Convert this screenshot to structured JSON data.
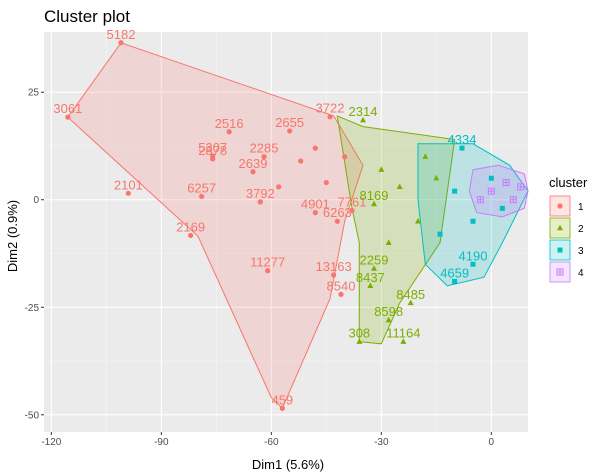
{
  "chart_data": {
    "type": "scatter",
    "title": "Cluster plot",
    "xlabel": "Dim1 (5.6%)",
    "ylabel": "Dim2 (0.9%)",
    "xlim": [
      -122,
      10
    ],
    "ylim": [
      -54,
      39
    ],
    "x_ticks": [
      -120,
      -90,
      -60,
      -30,
      0
    ],
    "x_tick_labels": [
      "-120",
      "-90",
      "-60",
      "-30",
      "0"
    ],
    "y_ticks": [
      -50,
      -25,
      0,
      25
    ],
    "y_tick_labels": [
      "-50",
      "-25",
      "0",
      "25"
    ],
    "grid": true,
    "legend": {
      "title": "cluster",
      "placement": "right",
      "entries": [
        {
          "label": "1",
          "color": "#F8766D",
          "shape": "circle"
        },
        {
          "label": "2",
          "color": "#7CAE00",
          "shape": "triangle"
        },
        {
          "label": "3",
          "color": "#00BFC4",
          "shape": "square"
        },
        {
          "label": "4",
          "color": "#C77CFF",
          "shape": "plus-square"
        }
      ]
    },
    "clusters": [
      {
        "id": "1",
        "color": "#F8766D",
        "hull": [
          [
            -115.5,
            19.2
          ],
          [
            -101,
            36.5
          ],
          [
            -43,
            19.5
          ],
          [
            -35,
            8
          ],
          [
            -40,
            -5
          ],
          [
            -44,
            -23
          ],
          [
            -57,
            -48.5
          ],
          [
            -60,
            -46
          ],
          [
            -80,
            -8.5
          ],
          [
            -115.5,
            19.2
          ]
        ],
        "points": [
          {
            "x": -101,
            "y": 36.5,
            "label": "5182"
          },
          {
            "x": -115.5,
            "y": 19.2,
            "label": "3061"
          },
          {
            "x": -71.5,
            "y": 15.8,
            "label": "2516"
          },
          {
            "x": -76,
            "y": 10.2,
            "label": "5307"
          },
          {
            "x": -76,
            "y": 9.5,
            "label": "2878"
          },
          {
            "x": -99,
            "y": 1.5,
            "label": "2101"
          },
          {
            "x": -79,
            "y": 0.8,
            "label": "6257"
          },
          {
            "x": -82,
            "y": -8.3,
            "label": "2169"
          },
          {
            "x": -61,
            "y": -16.5,
            "label": "11277"
          },
          {
            "x": -57,
            "y": -48.5,
            "label": "459"
          },
          {
            "x": -55,
            "y": 16,
            "label": "2655"
          },
          {
            "x": -44,
            "y": 19.3,
            "label": "3722"
          },
          {
            "x": -62,
            "y": 10,
            "label": "2285"
          },
          {
            "x": -65,
            "y": 6.5,
            "label": "2639"
          },
          {
            "x": -63,
            "y": -0.5,
            "label": "3792"
          },
          {
            "x": -48,
            "y": -3,
            "label": "4901"
          },
          {
            "x": -43,
            "y": -17.5,
            "label": "13163"
          },
          {
            "x": -41,
            "y": -22,
            "label": "8540"
          },
          {
            "x": -42,
            "y": -5,
            "label": "6263"
          },
          {
            "x": -38,
            "y": -2.5,
            "label": "7761"
          },
          {
            "x": -52,
            "y": 9,
            "label": ""
          },
          {
            "x": -48,
            "y": 12,
            "label": ""
          },
          {
            "x": -58,
            "y": 3,
            "label": ""
          },
          {
            "x": -45,
            "y": 4,
            "label": ""
          },
          {
            "x": -40,
            "y": 10,
            "label": ""
          }
        ]
      },
      {
        "id": "2",
        "color": "#7CAE00",
        "hull": [
          [
            -42,
            19.5
          ],
          [
            -35,
            17
          ],
          [
            -10,
            14
          ],
          [
            -14,
            -10
          ],
          [
            -25,
            -24
          ],
          [
            -30,
            -33.5
          ],
          [
            -36,
            -33
          ],
          [
            -36,
            -10
          ],
          [
            -38,
            -2
          ],
          [
            -42,
            19.5
          ]
        ],
        "points": [
          {
            "x": -36,
            "y": -33,
            "label": "308"
          },
          {
            "x": -24,
            "y": -33,
            "label": "11164"
          },
          {
            "x": -28,
            "y": -28,
            "label": "8598"
          },
          {
            "x": -22,
            "y": -24,
            "label": "8485"
          },
          {
            "x": -33,
            "y": -20,
            "label": "8437"
          },
          {
            "x": -32,
            "y": -16,
            "label": "2259"
          },
          {
            "x": -35,
            "y": 18.5,
            "label": "2314"
          },
          {
            "x": -32,
            "y": -1,
            "label": "8169"
          },
          {
            "x": -30,
            "y": 7,
            "label": ""
          },
          {
            "x": -25,
            "y": 3,
            "label": ""
          },
          {
            "x": -20,
            "y": -5,
            "label": ""
          },
          {
            "x": -18,
            "y": 10,
            "label": ""
          },
          {
            "x": -28,
            "y": -10,
            "label": ""
          },
          {
            "x": -15,
            "y": 5,
            "label": ""
          }
        ]
      },
      {
        "id": "3",
        "color": "#00BFC4",
        "hull": [
          [
            -20,
            13
          ],
          [
            -5,
            13
          ],
          [
            5,
            8
          ],
          [
            10,
            2
          ],
          [
            3,
            -10
          ],
          [
            -2,
            -18
          ],
          [
            -12,
            -20
          ],
          [
            -18,
            -15
          ],
          [
            -20,
            0
          ],
          [
            -20,
            13
          ]
        ],
        "points": [
          {
            "x": -5,
            "y": -15,
            "label": "4190"
          },
          {
            "x": -10,
            "y": -19,
            "label": "4659"
          },
          {
            "x": -8,
            "y": 12,
            "label": "4334"
          },
          {
            "x": -10,
            "y": 2,
            "label": ""
          },
          {
            "x": -5,
            "y": -5,
            "label": ""
          },
          {
            "x": 0,
            "y": 5,
            "label": ""
          },
          {
            "x": -14,
            "y": -8,
            "label": ""
          },
          {
            "x": 3,
            "y": -2,
            "label": ""
          }
        ]
      },
      {
        "id": "4",
        "color": "#C77CFF",
        "hull": [
          [
            -5,
            7
          ],
          [
            2,
            8
          ],
          [
            9,
            6
          ],
          [
            10,
            2
          ],
          [
            9,
            -2
          ],
          [
            3,
            -4
          ],
          [
            -4,
            -3
          ],
          [
            -6,
            2
          ],
          [
            -5,
            7
          ]
        ],
        "points": [
          {
            "x": 0,
            "y": 2,
            "label": ""
          },
          {
            "x": 4,
            "y": 4,
            "label": ""
          },
          {
            "x": 6,
            "y": 0,
            "label": ""
          },
          {
            "x": -3,
            "y": 0,
            "label": ""
          },
          {
            "x": 8,
            "y": 3,
            "label": ""
          }
        ]
      }
    ]
  }
}
